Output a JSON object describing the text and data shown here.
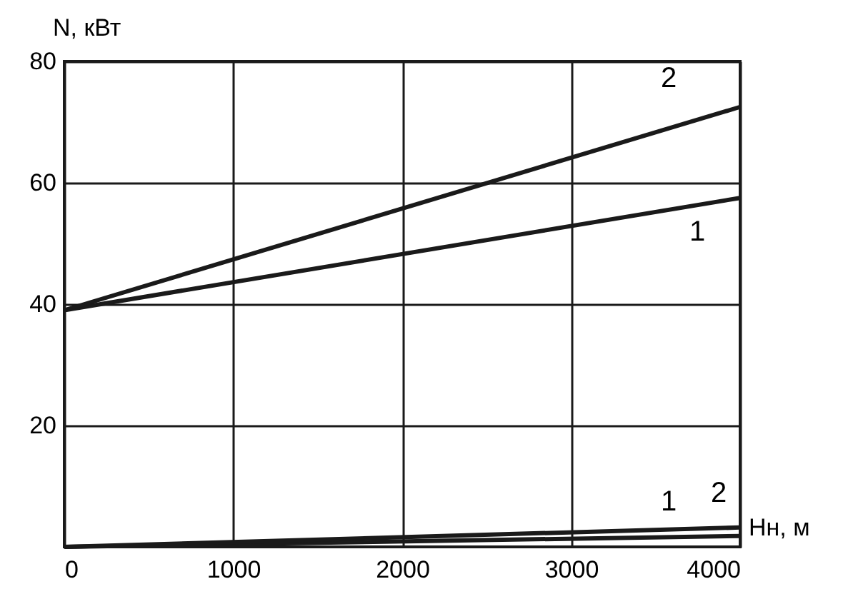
{
  "chart_data": {
    "type": "line",
    "xlabel": "Нн, м",
    "ylabel": "N, кВт",
    "xlim": [
      0,
      4000
    ],
    "ylim": [
      0,
      80
    ],
    "xticks": [
      0,
      1000,
      2000,
      3000,
      4000
    ],
    "yticks": [
      20,
      40,
      60,
      80
    ],
    "grid": true,
    "x": [
      0,
      4000
    ],
    "marker": "none",
    "line_style": "solid",
    "series": [
      {
        "name": "1",
        "color": "#1a1a1a",
        "values": [
          39,
          57.5
        ]
      },
      {
        "name": "2",
        "color": "#1a1a1a",
        "values": [
          39,
          72.5
        ]
      },
      {
        "name": "1",
        "color": "#1a1a1a",
        "values": [
          0,
          1.8
        ]
      },
      {
        "name": "2",
        "color": "#1a1a1a",
        "values": [
          0,
          3.2
        ]
      }
    ]
  }
}
